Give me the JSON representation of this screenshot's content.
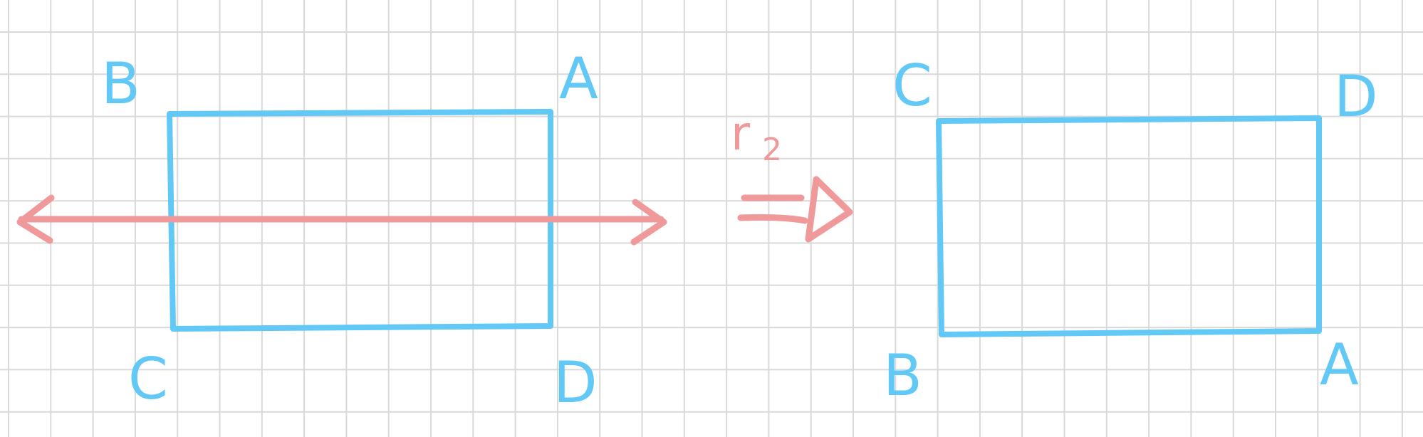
{
  "colors": {
    "grid": "#d9d9d9",
    "shape": "#62c8f5",
    "transform": "#f0999a",
    "background": "#ffffff"
  },
  "before": {
    "labels": {
      "top_left": "B",
      "top_right": "A",
      "bottom_left": "C",
      "bottom_right": "D"
    }
  },
  "transform": {
    "symbol": "r",
    "subscript": "2"
  },
  "after": {
    "labels": {
      "top_left": "C",
      "top_right": "D",
      "bottom_left": "B",
      "bottom_right": "A"
    }
  },
  "icons": {
    "mirror_line": "double-arrow-line",
    "maps_to": "implies-arrow"
  }
}
